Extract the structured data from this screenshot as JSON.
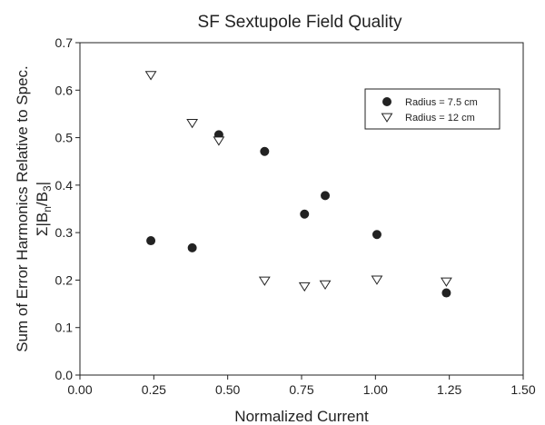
{
  "chart_data": {
    "type": "scatter",
    "title": "SF Sextupole Field Quality",
    "xlabel": "Normalized Current",
    "ylabel_line1": "Sum of Error Harmonics Relative to Spec.",
    "ylabel_line2": "Σ|B",
    "ylabel_sub1": "n",
    "ylabel_mid": "/B",
    "ylabel_sub2": "3",
    "ylabel_end": "|",
    "xlim": [
      0.0,
      1.5
    ],
    "ylim": [
      0.0,
      0.7
    ],
    "xticks": [
      "0.00",
      "0.25",
      "0.50",
      "0.75",
      "1.00",
      "1.25",
      "1.50"
    ],
    "yticks": [
      "0.0",
      "0.1",
      "0.2",
      "0.3",
      "0.4",
      "0.5",
      "0.6",
      "0.7"
    ],
    "grid": false,
    "legend_position": "top-right",
    "series": [
      {
        "name": "Radius = 7.5 cm",
        "marker": "filled-circle",
        "color": "#222222",
        "points": [
          {
            "x": 0.24,
            "y": 0.283
          },
          {
            "x": 0.38,
            "y": 0.268
          },
          {
            "x": 0.47,
            "y": 0.506
          },
          {
            "x": 0.625,
            "y": 0.471
          },
          {
            "x": 0.76,
            "y": 0.339
          },
          {
            "x": 0.83,
            "y": 0.378
          },
          {
            "x": 1.005,
            "y": 0.296
          },
          {
            "x": 1.24,
            "y": 0.173
          }
        ]
      },
      {
        "name": "Radius = 12 cm",
        "marker": "open-triangle-down",
        "color": "#222222",
        "points": [
          {
            "x": 0.24,
            "y": 0.632
          },
          {
            "x": 0.38,
            "y": 0.531
          },
          {
            "x": 0.47,
            "y": 0.494
          },
          {
            "x": 0.625,
            "y": 0.199
          },
          {
            "x": 0.76,
            "y": 0.187
          },
          {
            "x": 0.83,
            "y": 0.191
          },
          {
            "x": 1.005,
            "y": 0.201
          },
          {
            "x": 1.24,
            "y": 0.197
          }
        ]
      }
    ]
  }
}
